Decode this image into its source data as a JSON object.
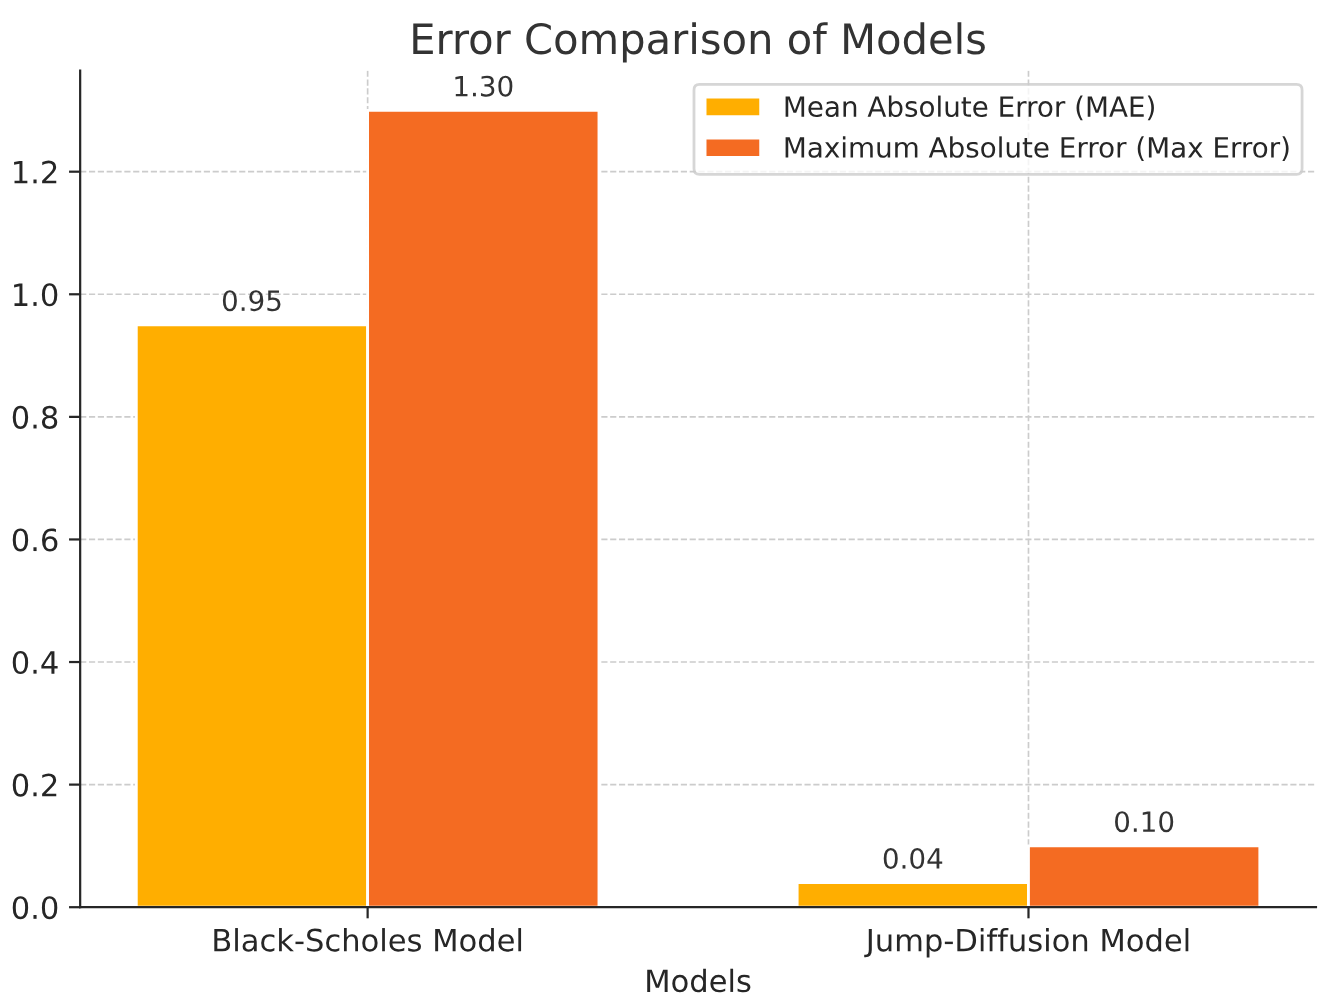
{
  "chart_data": {
    "type": "bar",
    "title": "Error Comparison of Models",
    "xlabel": "Models",
    "categories": [
      "Black-Scholes Model",
      "Jump-Diffusion Model"
    ],
    "series": [
      {
        "name": "Mean Absolute Error (MAE)",
        "color": "#ffae00",
        "values": [
          0.95,
          0.04
        ],
        "value_labels": [
          "0.95",
          "0.04"
        ]
      },
      {
        "name": "Maximum Absolute Error (Max Error)",
        "color": "#f46b22",
        "values": [
          1.3,
          0.1
        ],
        "value_labels": [
          "1.30",
          "0.10"
        ]
      }
    ],
    "ylim": [
      0,
      1.365
    ],
    "yticks": [
      {
        "value": 0,
        "label": "0.0"
      },
      0.2,
      0.4,
      0.6,
      0.8,
      {
        "value": 1,
        "label": "1.0"
      },
      1.2
    ],
    "grid": true,
    "legend": "top right"
  }
}
